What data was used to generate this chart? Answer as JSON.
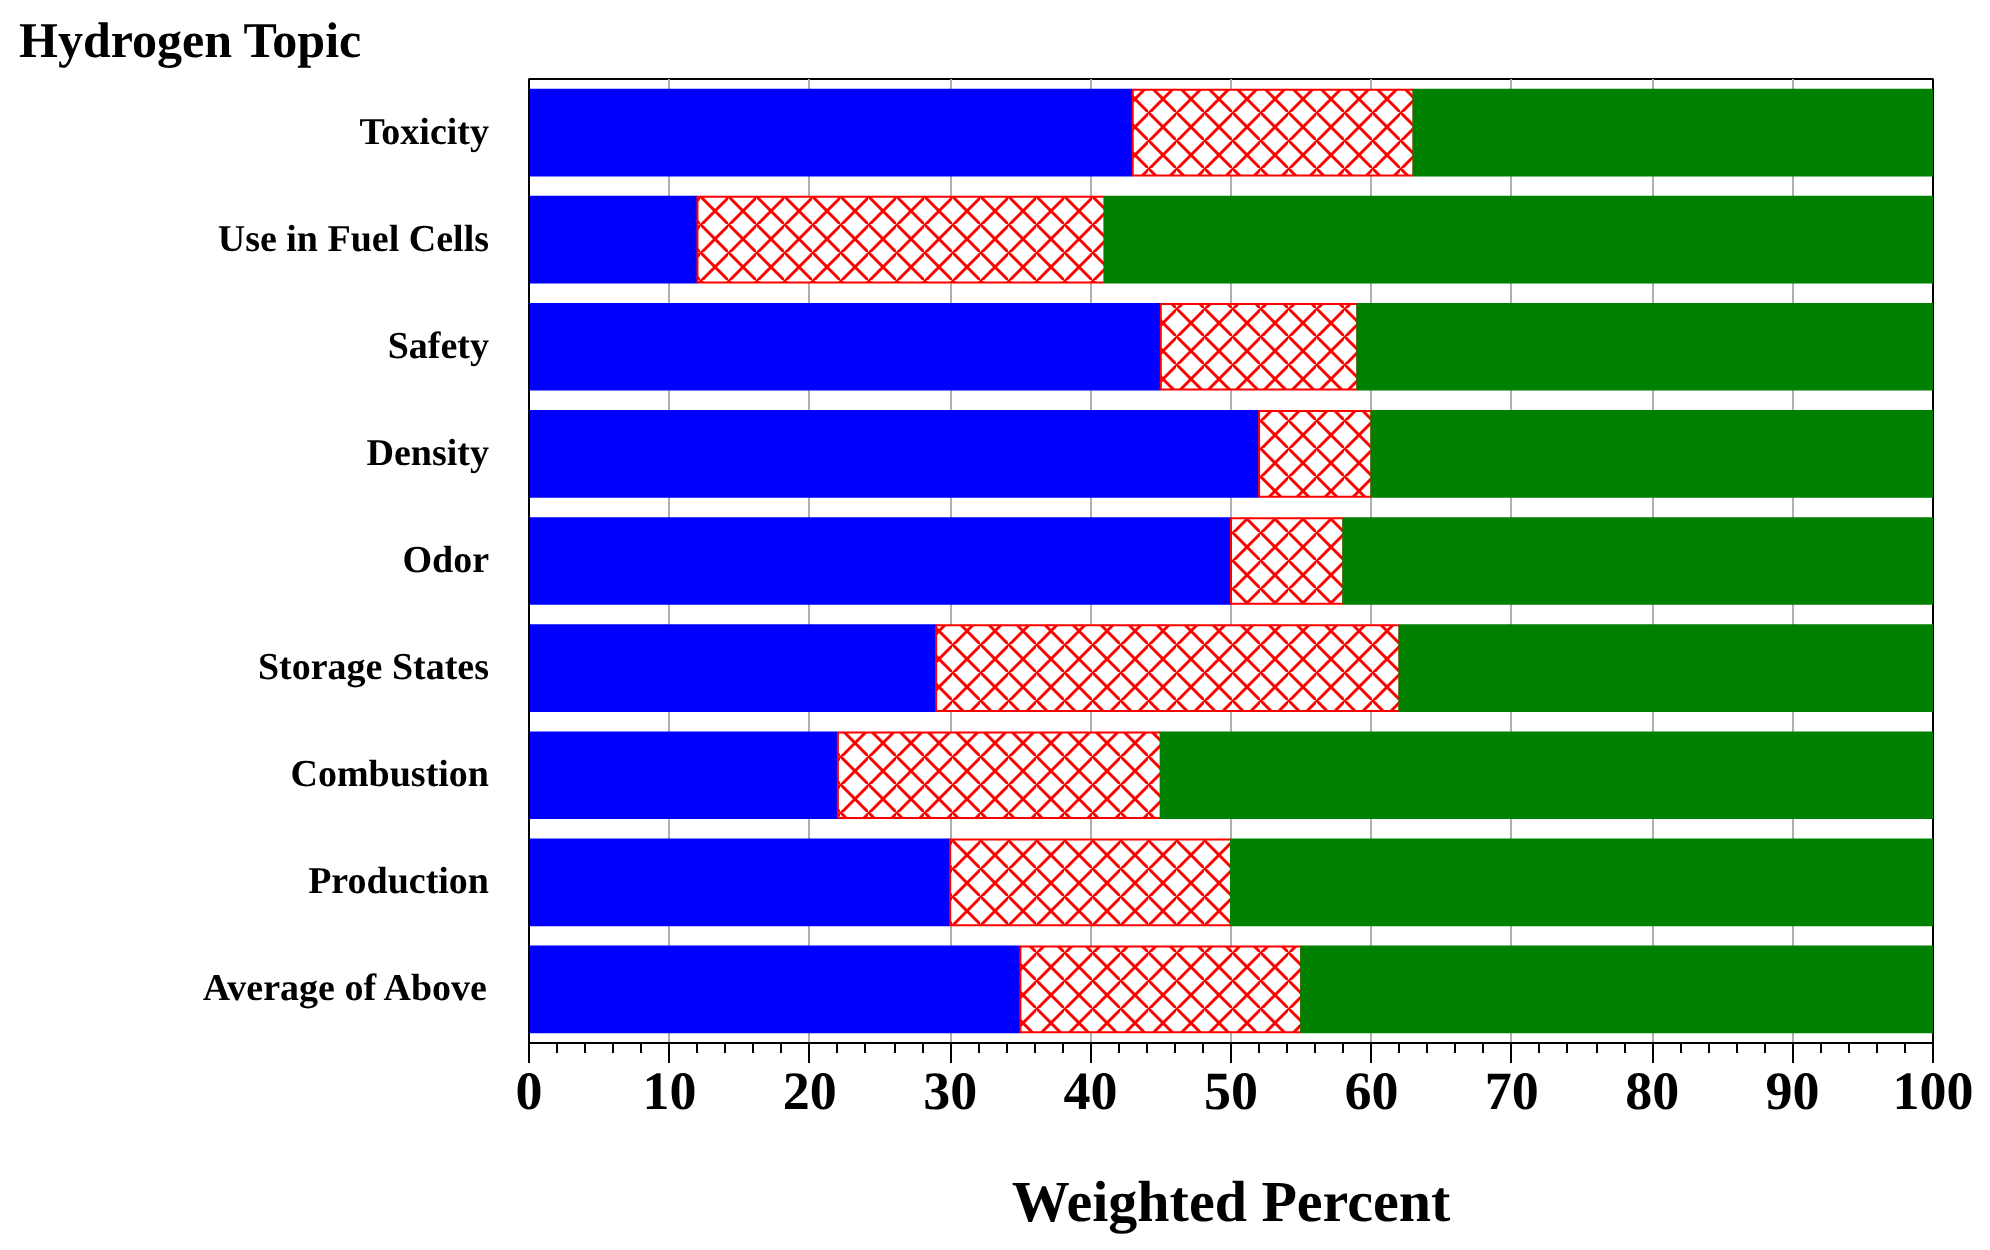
{
  "chart_data": {
    "type": "bar",
    "orientation": "horizontal",
    "stacked": true,
    "ylabel": "Hydrogen Topic",
    "xlabel": "Weighted Percent",
    "categories": [
      "Toxicity",
      "Use in Fuel Cells",
      "Safety",
      "Density",
      "Odor",
      "Storage States",
      "Combustion",
      "Production",
      "Average of Above"
    ],
    "series": [
      {
        "color": "#0000ff",
        "values": [
          43,
          12,
          45,
          52,
          50,
          29,
          22,
          30,
          35
        ]
      },
      {
        "color": "#ff0000",
        "values": [
          20,
          29,
          14,
          8,
          8,
          33,
          23,
          20,
          20
        ]
      },
      {
        "color": "#008000",
        "values": [
          37,
          59,
          41,
          40,
          42,
          38,
          55,
          50,
          45
        ]
      }
    ],
    "xlim": [
      0,
      100
    ],
    "xticks": [
      0,
      10,
      20,
      30,
      40,
      50,
      60,
      70,
      80,
      90,
      100
    ],
    "grid": "x"
  }
}
